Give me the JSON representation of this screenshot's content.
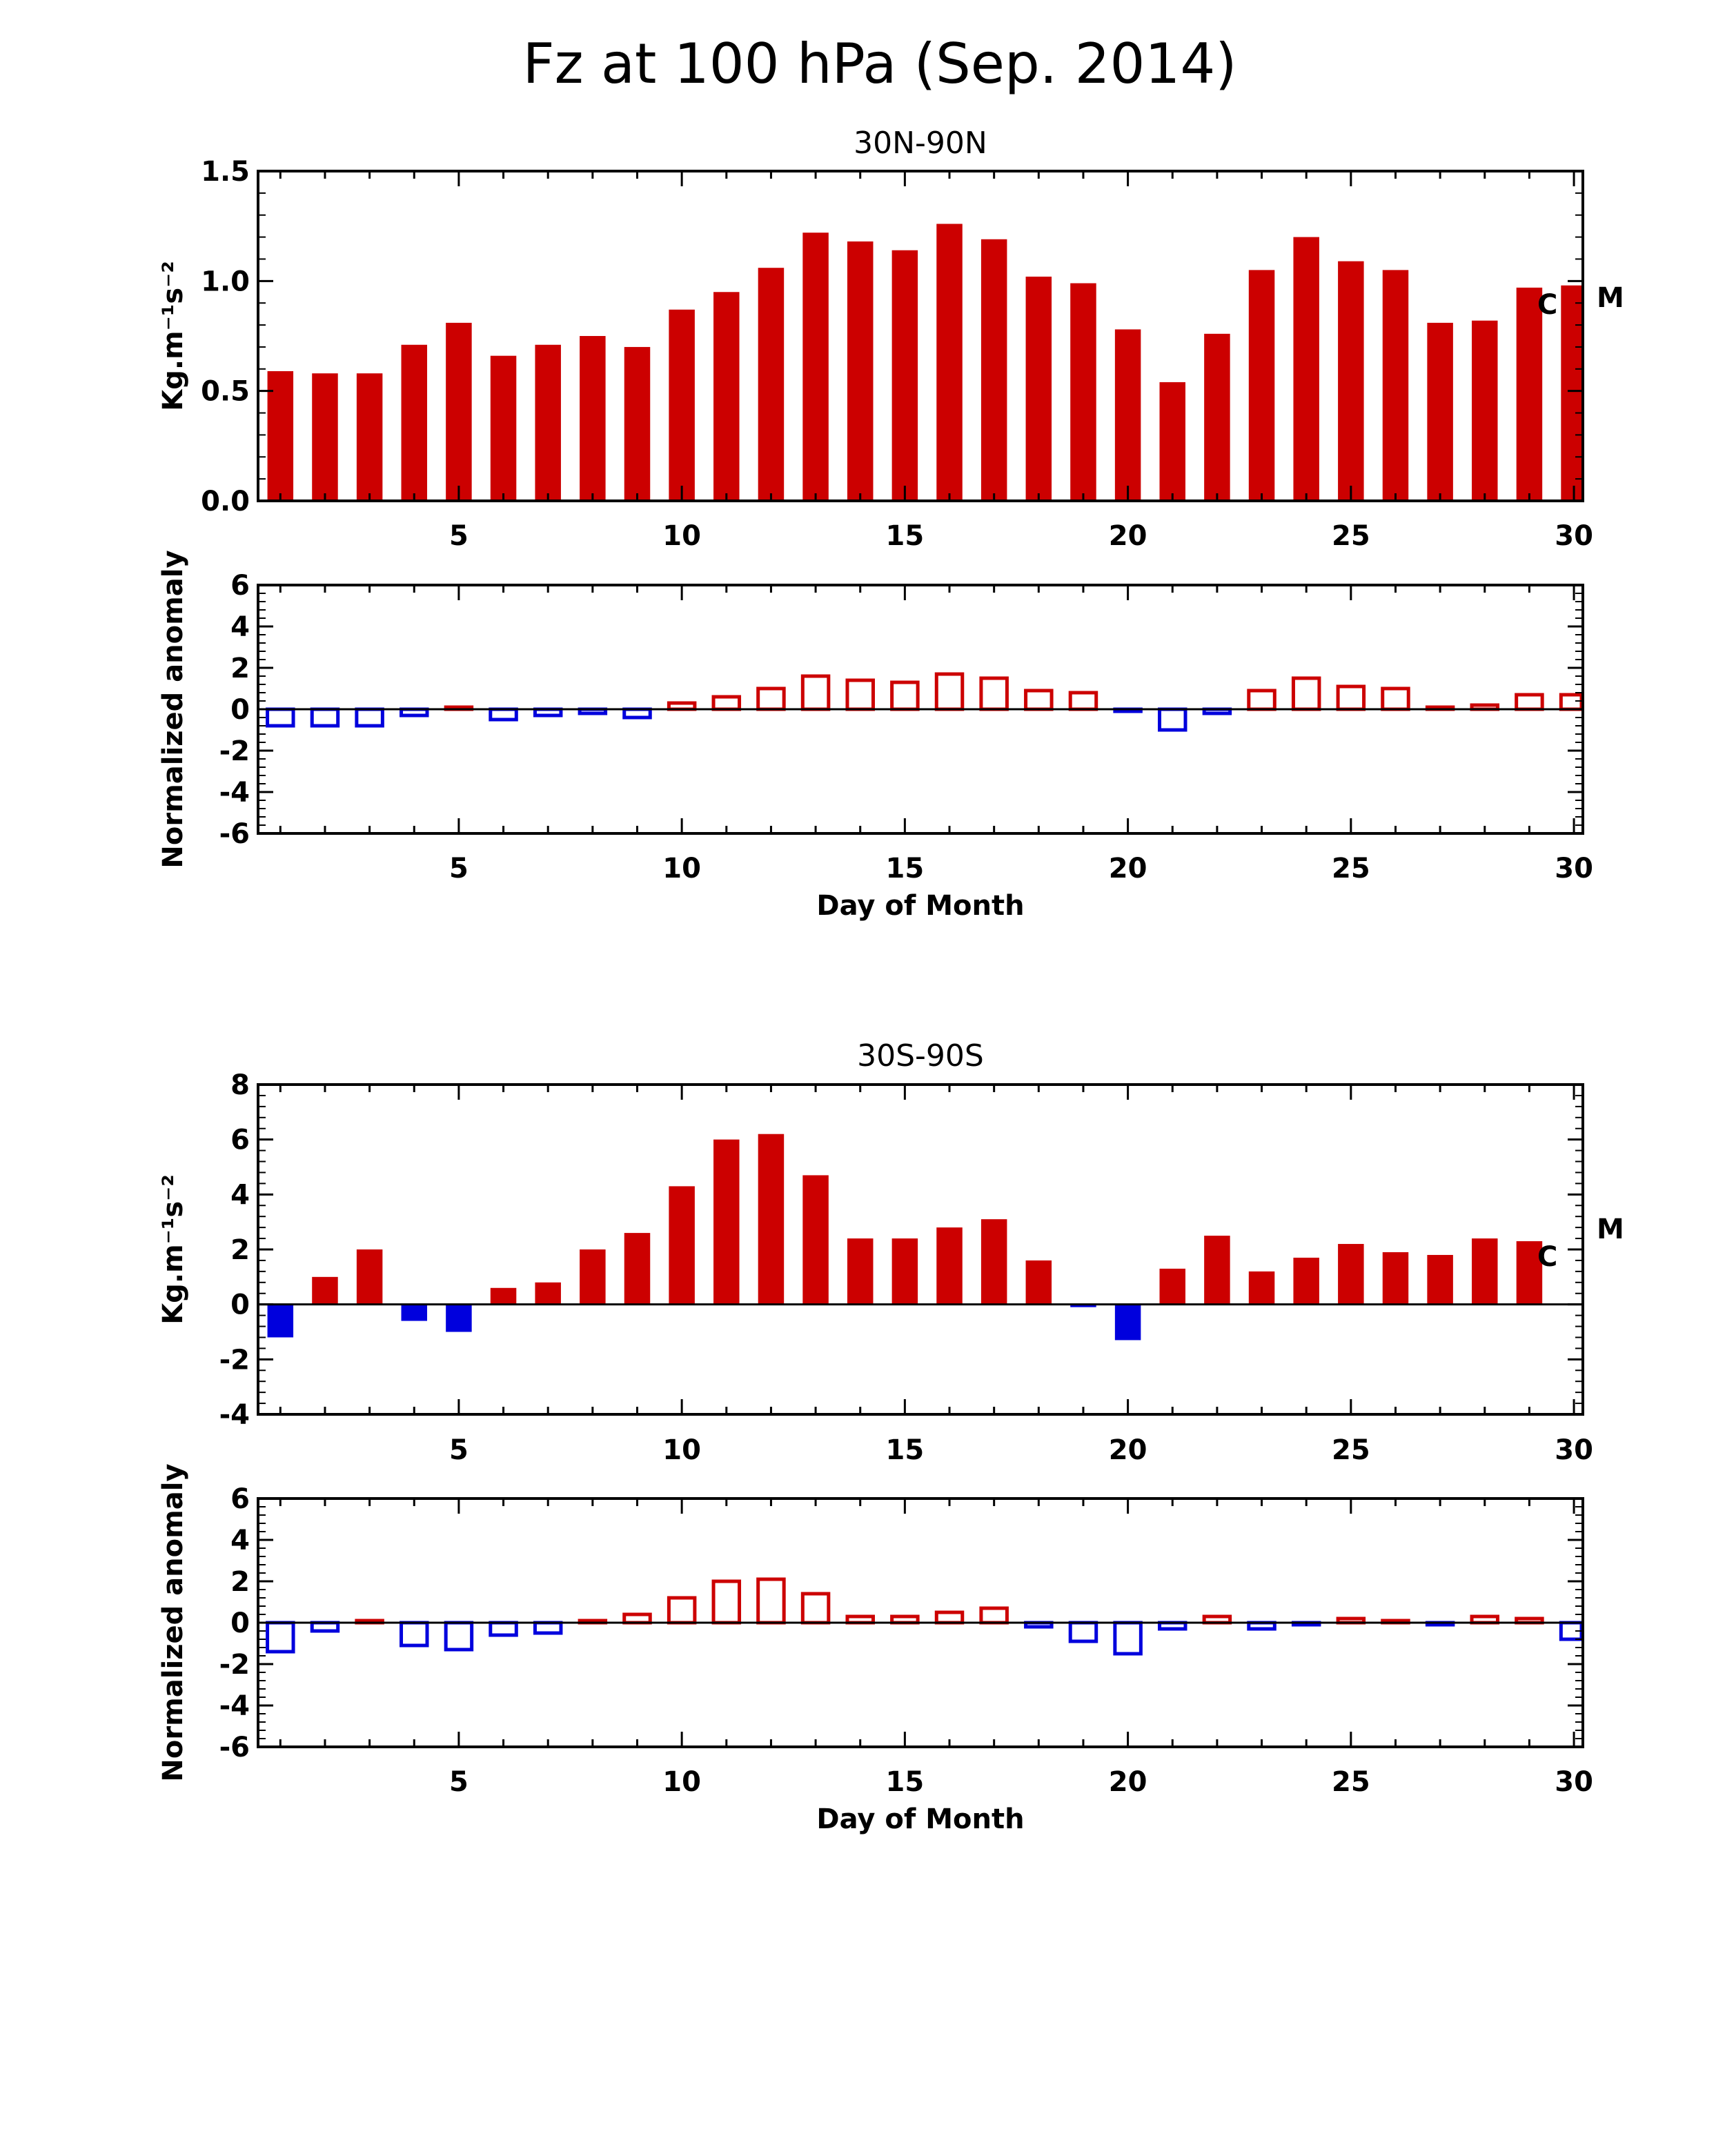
{
  "title": "Fz at 100 hPa (Sep. 2014)",
  "colors": {
    "positive": "#cc0000",
    "negative": "#0000dd",
    "axis": "#000000"
  },
  "chart_data": [
    {
      "type": "bar",
      "panel": "30N-90N flux",
      "title": "30N-90N",
      "ylabel": "Kg.m⁻¹s⁻²",
      "ylim": [
        0,
        1.5
      ],
      "yticks": [
        0.0,
        0.5,
        1.0,
        1.5
      ],
      "ytick_labels": [
        "0.0",
        "0.5",
        "1.0",
        "1.5"
      ],
      "xlim": [
        1,
        30
      ],
      "xticks": [
        5,
        10,
        15,
        20,
        25,
        30
      ],
      "style": "filled",
      "zero_line": false,
      "annotations": [
        "C",
        "M"
      ],
      "x": [
        1,
        2,
        3,
        4,
        5,
        6,
        7,
        8,
        9,
        10,
        11,
        12,
        13,
        14,
        15,
        16,
        17,
        18,
        19,
        20,
        21,
        22,
        23,
        24,
        25,
        26,
        27,
        28,
        29,
        30
      ],
      "values": [
        0.59,
        0.58,
        0.58,
        0.71,
        0.81,
        0.66,
        0.71,
        0.75,
        0.7,
        0.87,
        0.95,
        1.06,
        1.22,
        1.18,
        1.14,
        1.26,
        1.19,
        1.02,
        0.99,
        0.78,
        0.54,
        0.76,
        1.05,
        1.2,
        1.09,
        1.05,
        0.81,
        0.82,
        0.97,
        0.98
      ]
    },
    {
      "type": "bar",
      "panel": "30N-90N anomaly",
      "title": "",
      "ylabel": "Normalized anomaly",
      "xlabel": "Day of Month",
      "ylim": [
        -6,
        6
      ],
      "yticks": [
        -6,
        -4,
        -2,
        0,
        2,
        4,
        6
      ],
      "ytick_labels": [
        "-6",
        "-4",
        "-2",
        "0",
        "2",
        "4",
        "6"
      ],
      "xlim": [
        1,
        30
      ],
      "xticks": [
        5,
        10,
        15,
        20,
        25,
        30
      ],
      "style": "outline",
      "zero_line": true,
      "x": [
        1,
        2,
        3,
        4,
        5,
        6,
        7,
        8,
        9,
        10,
        11,
        12,
        13,
        14,
        15,
        16,
        17,
        18,
        19,
        20,
        21,
        22,
        23,
        24,
        25,
        26,
        27,
        28,
        29,
        30
      ],
      "values": [
        -0.8,
        -0.8,
        -0.8,
        -0.3,
        0.1,
        -0.5,
        -0.3,
        -0.2,
        -0.4,
        0.3,
        0.6,
        1.0,
        1.6,
        1.4,
        1.3,
        1.7,
        1.5,
        0.9,
        0.8,
        -0.1,
        -1.0,
        -0.2,
        0.9,
        1.5,
        1.1,
        1.0,
        0.1,
        0.2,
        0.7,
        0.7
      ]
    },
    {
      "type": "bar",
      "panel": "30S-90S flux",
      "title": "30S-90S",
      "ylabel": "Kg.m⁻¹s⁻²",
      "ylim": [
        -4,
        8
      ],
      "yticks": [
        -4,
        -2,
        0,
        2,
        4,
        6,
        8
      ],
      "ytick_labels": [
        "-4",
        "-2",
        "0",
        "2",
        "4",
        "6",
        "8"
      ],
      "xlim": [
        1,
        30
      ],
      "xticks": [
        5,
        10,
        15,
        20,
        25,
        30
      ],
      "style": "filled",
      "zero_line": true,
      "annotations": [
        "C",
        "M"
      ],
      "x": [
        1,
        2,
        3,
        4,
        5,
        6,
        7,
        8,
        9,
        10,
        11,
        12,
        13,
        14,
        15,
        16,
        17,
        18,
        19,
        20,
        21,
        22,
        23,
        24,
        25,
        26,
        27,
        28,
        29,
        30
      ],
      "values": [
        -1.2,
        1.0,
        2.0,
        -0.6,
        -1.0,
        0.6,
        0.8,
        2.0,
        2.6,
        4.3,
        6.0,
        6.2,
        4.7,
        2.4,
        2.4,
        2.8,
        3.1,
        1.6,
        -0.1,
        -1.3,
        1.3,
        2.5,
        1.2,
        1.7,
        2.2,
        1.9,
        1.8,
        2.4,
        2.3,
        null
      ]
    },
    {
      "type": "bar",
      "panel": "30S-90S anomaly",
      "title": "",
      "ylabel": "Normalized anomaly",
      "xlabel": "Day of Month",
      "ylim": [
        -6,
        6
      ],
      "yticks": [
        -6,
        -4,
        -2,
        0,
        2,
        4,
        6
      ],
      "ytick_labels": [
        "-6",
        "-4",
        "-2",
        "0",
        "2",
        "4",
        "6"
      ],
      "xlim": [
        1,
        30
      ],
      "xticks": [
        5,
        10,
        15,
        20,
        25,
        30
      ],
      "style": "outline",
      "zero_line": true,
      "x": [
        1,
        2,
        3,
        4,
        5,
        6,
        7,
        8,
        9,
        10,
        11,
        12,
        13,
        14,
        15,
        16,
        17,
        18,
        19,
        20,
        21,
        22,
        23,
        24,
        25,
        26,
        27,
        28,
        29,
        30
      ],
      "values": [
        -1.4,
        -0.4,
        0.1,
        -1.1,
        -1.3,
        -0.6,
        -0.5,
        0.1,
        0.4,
        1.2,
        2.0,
        2.1,
        1.4,
        0.3,
        0.3,
        0.5,
        0.7,
        -0.2,
        -0.9,
        -1.5,
        -0.3,
        0.3,
        -0.3,
        -0.1,
        0.2,
        0.1,
        -0.1,
        0.3,
        0.2,
        -0.8
      ]
    }
  ]
}
